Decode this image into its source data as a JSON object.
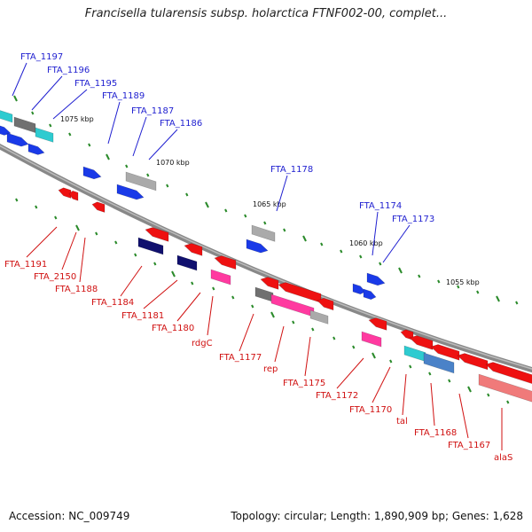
{
  "title": "Francisella tularensis subsp. holarctica FTNF002-00, complet...",
  "footer": {
    "accession": "Accession: NC_009749",
    "topology": "Topology: circular; Length: 1,890,909 bp; Genes: 1,628"
  },
  "colors": {
    "backbone": "#888888",
    "forward_label": "#1f1fd0",
    "reverse_label": "#d01010",
    "tick": "#2a8a2a",
    "red": "#ee1111",
    "blue": "#1a3ae8",
    "navy": "#10106e",
    "magenta": "#ff3aa0",
    "cyan": "#2ecbd0",
    "steel": "#4a82c8",
    "gray": "#aaaaaa",
    "darkgray": "#707070",
    "pink": "#f07a7a"
  },
  "kbp_labels": [
    "1075 kbp",
    "1070 kbp",
    "1065 kbp",
    "1060 kbp",
    "1055 kbp"
  ],
  "forward_genes": [
    "FTA_1197",
    "FTA_1196",
    "FTA_1195",
    "FTA_1189",
    "FTA_1187",
    "FTA_1186",
    "FTA_1178",
    "FTA_1174",
    "FTA_1173"
  ],
  "reverse_genes": [
    "FTA_1191",
    "FTA_2150",
    "FTA_1188",
    "FTA_1184",
    "FTA_1181",
    "FTA_1180",
    "rdgC",
    "FTA_1177",
    "rep",
    "FTA_1175",
    "FTA_1172",
    "FTA_1170",
    "tal",
    "FTA_1168",
    "FTA_1167",
    "alaS"
  ]
}
